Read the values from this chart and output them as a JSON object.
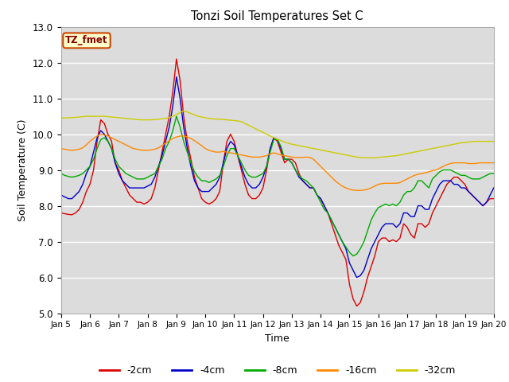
{
  "title": "Tonzi Soil Temperatures Set C",
  "xlabel": "Time",
  "ylabel": "Soil Temperature (C)",
  "ylim": [
    5.0,
    13.0
  ],
  "xlim": [
    0,
    360
  ],
  "bg_color": "#dcdcdc",
  "fig_color": "#ffffff",
  "label_box_text": "TZ_fmet",
  "label_box_facecolor": "#ffffcc",
  "label_box_edgecolor": "#cc4400",
  "label_box_textcolor": "#880000",
  "xtick_labels": [
    "Jan 5",
    "Jan 6",
    "Jan 7",
    "Jan 8",
    "Jan 9",
    "Jan 10",
    "Jan 11",
    "Jan 12",
    "Jan 13",
    "Jan 14",
    "Jan 15",
    "Jan 16",
    "Jan 17",
    "Jan 18",
    "Jan 19",
    "Jan 20"
  ],
  "xtick_positions": [
    0,
    24,
    48,
    72,
    96,
    120,
    144,
    168,
    192,
    216,
    240,
    264,
    288,
    312,
    336,
    360
  ],
  "ytick_labels": [
    "5.0",
    "6.0",
    "7.0",
    "8.0",
    "9.0",
    "10.0",
    "11.0",
    "12.0",
    "13.0"
  ],
  "ytick_positions": [
    5.0,
    6.0,
    7.0,
    8.0,
    9.0,
    10.0,
    11.0,
    12.0,
    13.0
  ],
  "lines": {
    "-2cm": {
      "color": "#dd0000",
      "x": [
        0,
        3,
        6,
        9,
        12,
        15,
        18,
        21,
        24,
        27,
        30,
        33,
        36,
        39,
        42,
        45,
        48,
        51,
        54,
        57,
        60,
        63,
        66,
        69,
        72,
        75,
        78,
        81,
        84,
        87,
        90,
        93,
        96,
        99,
        102,
        105,
        108,
        111,
        114,
        117,
        120,
        123,
        126,
        129,
        132,
        135,
        138,
        141,
        144,
        147,
        150,
        153,
        156,
        159,
        162,
        165,
        168,
        171,
        174,
        177,
        180,
        183,
        186,
        189,
        192,
        195,
        198,
        201,
        204,
        207,
        210,
        213,
        216,
        219,
        222,
        225,
        228,
        231,
        234,
        237,
        240,
        243,
        246,
        249,
        252,
        255,
        258,
        261,
        264,
        267,
        270,
        273,
        276,
        279,
        282,
        285,
        288,
        291,
        294,
        297,
        300,
        303,
        306,
        309,
        312,
        315,
        318,
        321,
        324,
        327,
        330,
        333,
        336,
        339,
        342,
        345,
        348,
        351,
        354,
        357,
        360
      ],
      "y": [
        7.8,
        7.78,
        7.76,
        7.75,
        7.8,
        7.9,
        8.1,
        8.4,
        8.6,
        9.0,
        9.8,
        10.4,
        10.3,
        10.0,
        9.8,
        9.2,
        9.0,
        8.7,
        8.5,
        8.3,
        8.2,
        8.1,
        8.1,
        8.05,
        8.1,
        8.2,
        8.5,
        9.0,
        9.5,
        10.0,
        10.5,
        11.2,
        12.1,
        11.5,
        10.5,
        9.8,
        9.3,
        8.8,
        8.5,
        8.2,
        8.1,
        8.05,
        8.1,
        8.2,
        8.4,
        9.2,
        9.8,
        10.0,
        9.8,
        9.4,
        9.0,
        8.6,
        8.3,
        8.2,
        8.2,
        8.3,
        8.5,
        9.0,
        9.6,
        9.9,
        9.8,
        9.5,
        9.2,
        9.3,
        9.3,
        9.2,
        8.9,
        8.7,
        8.6,
        8.5,
        8.5,
        8.3,
        8.2,
        8.0,
        7.8,
        7.5,
        7.2,
        6.9,
        6.7,
        6.5,
        5.8,
        5.4,
        5.2,
        5.3,
        5.6,
        6.0,
        6.3,
        6.6,
        7.0,
        7.1,
        7.1,
        7.0,
        7.05,
        7.0,
        7.1,
        7.5,
        7.4,
        7.2,
        7.1,
        7.5,
        7.5,
        7.4,
        7.5,
        7.8,
        8.0,
        8.2,
        8.4,
        8.6,
        8.7,
        8.8,
        8.8,
        8.7,
        8.6,
        8.4,
        8.3,
        8.2,
        8.1,
        8.0,
        8.1,
        8.2,
        8.2
      ]
    },
    "-4cm": {
      "color": "#0000cc",
      "x": [
        0,
        3,
        6,
        9,
        12,
        15,
        18,
        21,
        24,
        27,
        30,
        33,
        36,
        39,
        42,
        45,
        48,
        51,
        54,
        57,
        60,
        63,
        66,
        69,
        72,
        75,
        78,
        81,
        84,
        87,
        90,
        93,
        96,
        99,
        102,
        105,
        108,
        111,
        114,
        117,
        120,
        123,
        126,
        129,
        132,
        135,
        138,
        141,
        144,
        147,
        150,
        153,
        156,
        159,
        162,
        165,
        168,
        171,
        174,
        177,
        180,
        183,
        186,
        189,
        192,
        195,
        198,
        201,
        204,
        207,
        210,
        213,
        216,
        219,
        222,
        225,
        228,
        231,
        234,
        237,
        240,
        243,
        246,
        249,
        252,
        255,
        258,
        261,
        264,
        267,
        270,
        273,
        276,
        279,
        282,
        285,
        288,
        291,
        294,
        297,
        300,
        303,
        306,
        309,
        312,
        315,
        318,
        321,
        324,
        327,
        330,
        333,
        336,
        339,
        342,
        345,
        348,
        351,
        354,
        357,
        360
      ],
      "y": [
        8.3,
        8.25,
        8.2,
        8.2,
        8.3,
        8.4,
        8.6,
        8.9,
        9.1,
        9.5,
        9.9,
        10.1,
        10.0,
        9.8,
        9.6,
        9.2,
        8.9,
        8.7,
        8.6,
        8.5,
        8.5,
        8.5,
        8.5,
        8.5,
        8.55,
        8.6,
        8.8,
        9.1,
        9.4,
        9.8,
        10.2,
        10.8,
        11.6,
        11.0,
        10.2,
        9.6,
        9.1,
        8.7,
        8.5,
        8.4,
        8.4,
        8.4,
        8.5,
        8.6,
        8.8,
        9.2,
        9.6,
        9.8,
        9.7,
        9.4,
        9.1,
        8.8,
        8.6,
        8.5,
        8.5,
        8.6,
        8.8,
        9.1,
        9.6,
        9.9,
        9.85,
        9.6,
        9.3,
        9.3,
        9.2,
        9.0,
        8.8,
        8.7,
        8.6,
        8.5,
        8.5,
        8.3,
        8.2,
        8.0,
        7.8,
        7.6,
        7.4,
        7.2,
        7.0,
        6.8,
        6.4,
        6.2,
        6.0,
        6.05,
        6.2,
        6.5,
        6.8,
        7.0,
        7.2,
        7.4,
        7.5,
        7.5,
        7.5,
        7.4,
        7.5,
        7.8,
        7.8,
        7.7,
        7.7,
        8.0,
        8.0,
        7.9,
        7.9,
        8.2,
        8.4,
        8.6,
        8.7,
        8.7,
        8.7,
        8.6,
        8.6,
        8.5,
        8.5,
        8.4,
        8.3,
        8.2,
        8.1,
        8.0,
        8.1,
        8.3,
        8.5
      ]
    },
    "-8cm": {
      "color": "#00aa00",
      "x": [
        0,
        3,
        6,
        9,
        12,
        15,
        18,
        21,
        24,
        27,
        30,
        33,
        36,
        39,
        42,
        45,
        48,
        51,
        54,
        57,
        60,
        63,
        66,
        69,
        72,
        75,
        78,
        81,
        84,
        87,
        90,
        93,
        96,
        99,
        102,
        105,
        108,
        111,
        114,
        117,
        120,
        123,
        126,
        129,
        132,
        135,
        138,
        141,
        144,
        147,
        150,
        153,
        156,
        159,
        162,
        165,
        168,
        171,
        174,
        177,
        180,
        183,
        186,
        189,
        192,
        195,
        198,
        201,
        204,
        207,
        210,
        213,
        216,
        219,
        222,
        225,
        228,
        231,
        234,
        237,
        240,
        243,
        246,
        249,
        252,
        255,
        258,
        261,
        264,
        267,
        270,
        273,
        276,
        279,
        282,
        285,
        288,
        291,
        294,
        297,
        300,
        303,
        306,
        309,
        312,
        315,
        318,
        321,
        324,
        327,
        330,
        333,
        336,
        339,
        342,
        345,
        348,
        351,
        354,
        357,
        360
      ],
      "y": [
        8.9,
        8.85,
        8.82,
        8.8,
        8.82,
        8.85,
        8.9,
        9.0,
        9.1,
        9.3,
        9.6,
        9.85,
        9.9,
        9.8,
        9.6,
        9.3,
        9.1,
        9.0,
        8.9,
        8.85,
        8.8,
        8.75,
        8.75,
        8.75,
        8.8,
        8.85,
        8.9,
        9.1,
        9.3,
        9.6,
        9.8,
        10.1,
        10.5,
        10.2,
        9.8,
        9.5,
        9.2,
        8.95,
        8.8,
        8.7,
        8.7,
        8.65,
        8.7,
        8.75,
        8.85,
        9.1,
        9.4,
        9.6,
        9.6,
        9.4,
        9.2,
        9.0,
        8.85,
        8.8,
        8.8,
        8.85,
        8.9,
        9.1,
        9.5,
        9.85,
        9.85,
        9.65,
        9.3,
        9.3,
        9.2,
        9.0,
        8.85,
        8.75,
        8.7,
        8.6,
        8.5,
        8.3,
        8.1,
        7.9,
        7.8,
        7.6,
        7.4,
        7.2,
        7.0,
        6.85,
        6.7,
        6.6,
        6.65,
        6.8,
        7.0,
        7.3,
        7.6,
        7.8,
        7.95,
        8.0,
        8.05,
        8.0,
        8.05,
        8.0,
        8.1,
        8.3,
        8.4,
        8.4,
        8.5,
        8.7,
        8.7,
        8.6,
        8.5,
        8.75,
        8.85,
        8.95,
        9.0,
        9.0,
        9.0,
        8.95,
        8.9,
        8.85,
        8.85,
        8.8,
        8.75,
        8.75,
        8.75,
        8.8,
        8.85,
        8.9,
        8.9
      ]
    },
    "-16cm": {
      "color": "#ff8800",
      "x": [
        0,
        3,
        6,
        9,
        12,
        15,
        18,
        21,
        24,
        27,
        30,
        33,
        36,
        39,
        42,
        45,
        48,
        51,
        54,
        57,
        60,
        63,
        66,
        69,
        72,
        75,
        78,
        81,
        84,
        87,
        90,
        93,
        96,
        99,
        102,
        105,
        108,
        111,
        114,
        117,
        120,
        123,
        126,
        129,
        132,
        135,
        138,
        141,
        144,
        147,
        150,
        153,
        156,
        159,
        162,
        165,
        168,
        171,
        174,
        177,
        180,
        183,
        186,
        189,
        192,
        195,
        198,
        201,
        204,
        207,
        210,
        213,
        216,
        219,
        222,
        225,
        228,
        231,
        234,
        237,
        240,
        243,
        246,
        249,
        252,
        255,
        258,
        261,
        264,
        267,
        270,
        273,
        276,
        279,
        282,
        285,
        288,
        291,
        294,
        297,
        300,
        303,
        306,
        309,
        312,
        315,
        318,
        321,
        324,
        327,
        330,
        333,
        336,
        339,
        342,
        345,
        348,
        351,
        354,
        357,
        360
      ],
      "y": [
        9.6,
        9.58,
        9.56,
        9.55,
        9.56,
        9.58,
        9.62,
        9.7,
        9.8,
        9.88,
        9.95,
        10.0,
        9.98,
        9.95,
        9.9,
        9.85,
        9.8,
        9.75,
        9.7,
        9.65,
        9.6,
        9.58,
        9.56,
        9.55,
        9.55,
        9.56,
        9.58,
        9.62,
        9.68,
        9.75,
        9.82,
        9.88,
        9.92,
        9.95,
        9.95,
        9.92,
        9.88,
        9.82,
        9.75,
        9.68,
        9.6,
        9.55,
        9.52,
        9.5,
        9.5,
        9.52,
        9.5,
        9.48,
        9.46,
        9.44,
        9.42,
        9.4,
        9.38,
        9.36,
        9.36,
        9.36,
        9.38,
        9.4,
        9.45,
        9.48,
        9.45,
        9.42,
        9.4,
        9.38,
        9.36,
        9.35,
        9.35,
        9.35,
        9.36,
        9.35,
        9.3,
        9.2,
        9.1,
        9.0,
        8.9,
        8.8,
        8.7,
        8.62,
        8.55,
        8.5,
        8.46,
        8.44,
        8.43,
        8.43,
        8.44,
        8.46,
        8.5,
        8.55,
        8.6,
        8.62,
        8.63,
        8.63,
        8.63,
        8.63,
        8.65,
        8.7,
        8.75,
        8.8,
        8.85,
        8.88,
        8.9,
        8.92,
        8.95,
        8.98,
        9.0,
        9.05,
        9.1,
        9.15,
        9.18,
        9.2,
        9.2,
        9.2,
        9.2,
        9.18,
        9.18,
        9.18,
        9.2,
        9.2,
        9.2,
        9.2,
        9.2
      ]
    },
    "-32cm": {
      "color": "#cccc00",
      "x": [
        0,
        3,
        6,
        9,
        12,
        15,
        18,
        21,
        24,
        27,
        30,
        33,
        36,
        39,
        42,
        45,
        48,
        51,
        54,
        57,
        60,
        63,
        66,
        69,
        72,
        75,
        78,
        81,
        84,
        87,
        90,
        93,
        96,
        99,
        102,
        105,
        108,
        111,
        114,
        117,
        120,
        123,
        126,
        129,
        132,
        135,
        138,
        141,
        144,
        147,
        150,
        153,
        156,
        159,
        162,
        165,
        168,
        171,
        174,
        177,
        180,
        183,
        186,
        189,
        192,
        195,
        198,
        201,
        204,
        207,
        210,
        213,
        216,
        219,
        222,
        225,
        228,
        231,
        234,
        237,
        240,
        243,
        246,
        249,
        252,
        255,
        258,
        261,
        264,
        267,
        270,
        273,
        276,
        279,
        282,
        285,
        288,
        291,
        294,
        297,
        300,
        303,
        306,
        309,
        312,
        315,
        318,
        321,
        324,
        327,
        330,
        333,
        336,
        339,
        342,
        345,
        348,
        351,
        354,
        357,
        360
      ],
      "y": [
        10.45,
        10.45,
        10.46,
        10.46,
        10.47,
        10.48,
        10.49,
        10.5,
        10.5,
        10.5,
        10.5,
        10.5,
        10.5,
        10.49,
        10.48,
        10.47,
        10.46,
        10.45,
        10.44,
        10.43,
        10.42,
        10.41,
        10.4,
        10.4,
        10.4,
        10.4,
        10.41,
        10.42,
        10.43,
        10.44,
        10.46,
        10.5,
        10.55,
        10.6,
        10.65,
        10.62,
        10.58,
        10.54,
        10.5,
        10.48,
        10.46,
        10.44,
        10.43,
        10.42,
        10.42,
        10.41,
        10.4,
        10.39,
        10.38,
        10.37,
        10.35,
        10.3,
        10.25,
        10.2,
        10.15,
        10.1,
        10.05,
        10.0,
        9.95,
        9.9,
        9.86,
        9.82,
        9.78,
        9.75,
        9.72,
        9.7,
        9.68,
        9.66,
        9.64,
        9.62,
        9.6,
        9.58,
        9.56,
        9.54,
        9.52,
        9.5,
        9.48,
        9.46,
        9.44,
        9.42,
        9.4,
        9.38,
        9.36,
        9.35,
        9.34,
        9.34,
        9.34,
        9.34,
        9.35,
        9.36,
        9.37,
        9.38,
        9.39,
        9.4,
        9.42,
        9.44,
        9.46,
        9.48,
        9.5,
        9.52,
        9.54,
        9.56,
        9.58,
        9.6,
        9.62,
        9.64,
        9.66,
        9.68,
        9.7,
        9.72,
        9.74,
        9.76,
        9.77,
        9.78,
        9.79,
        9.8,
        9.8,
        9.8,
        9.8,
        9.8,
        9.8
      ]
    }
  },
  "legend": [
    {
      "label": "-2cm",
      "color": "#dd0000"
    },
    {
      "label": "-4cm",
      "color": "#0000cc"
    },
    {
      "label": "-8cm",
      "color": "#00aa00"
    },
    {
      "label": "-16cm",
      "color": "#ff8800"
    },
    {
      "label": "-32cm",
      "color": "#cccc00"
    }
  ]
}
